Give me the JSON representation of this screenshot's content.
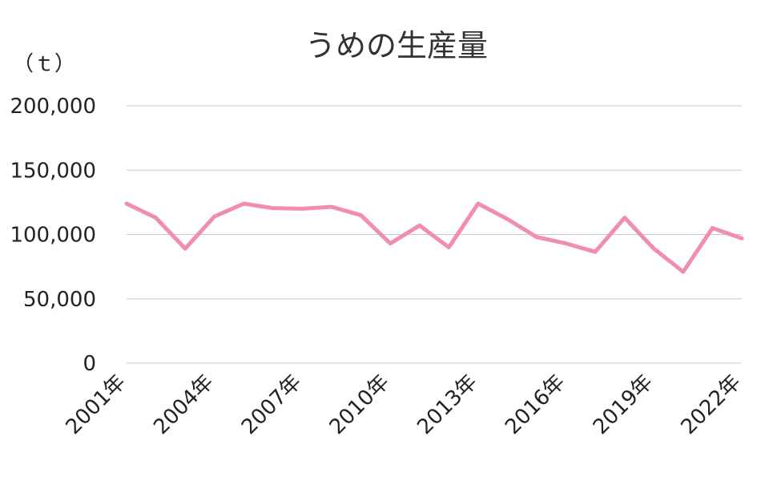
{
  "chart_data": {
    "type": "line",
    "title": "うめの生産量",
    "unit_label": "（ｔ）",
    "xlabel": "",
    "ylabel": "",
    "ylim": [
      0,
      200000
    ],
    "yticks": [
      0,
      50000,
      100000,
      150000,
      200000
    ],
    "ytick_labels": [
      "0",
      "50,000",
      "100,000",
      "150,000",
      "200,000"
    ],
    "x": [
      "2001年",
      "2002年",
      "2003年",
      "2004年",
      "2005年",
      "2006年",
      "2007年",
      "2008年",
      "2009年",
      "2010年",
      "2011年",
      "2012年",
      "2013年",
      "2014年",
      "2015年",
      "2016年",
      "2017年",
      "2018年",
      "2019年",
      "2020年",
      "2021年",
      "2022年"
    ],
    "xtick_labels": [
      "2001年",
      "2004年",
      "2007年",
      "2010年",
      "2013年",
      "2016年",
      "2019年",
      "2022年"
    ],
    "grid": true,
    "legend": "none",
    "series": [
      {
        "color": "#f28db2",
        "values": [
          124000,
          113000,
          89000,
          114000,
          124000,
          120500,
          120000,
          121500,
          115000,
          93000,
          107000,
          90000,
          124000,
          112000,
          98000,
          93000,
          86500,
          113000,
          89000,
          71000,
          105000,
          97000
        ]
      }
    ]
  }
}
